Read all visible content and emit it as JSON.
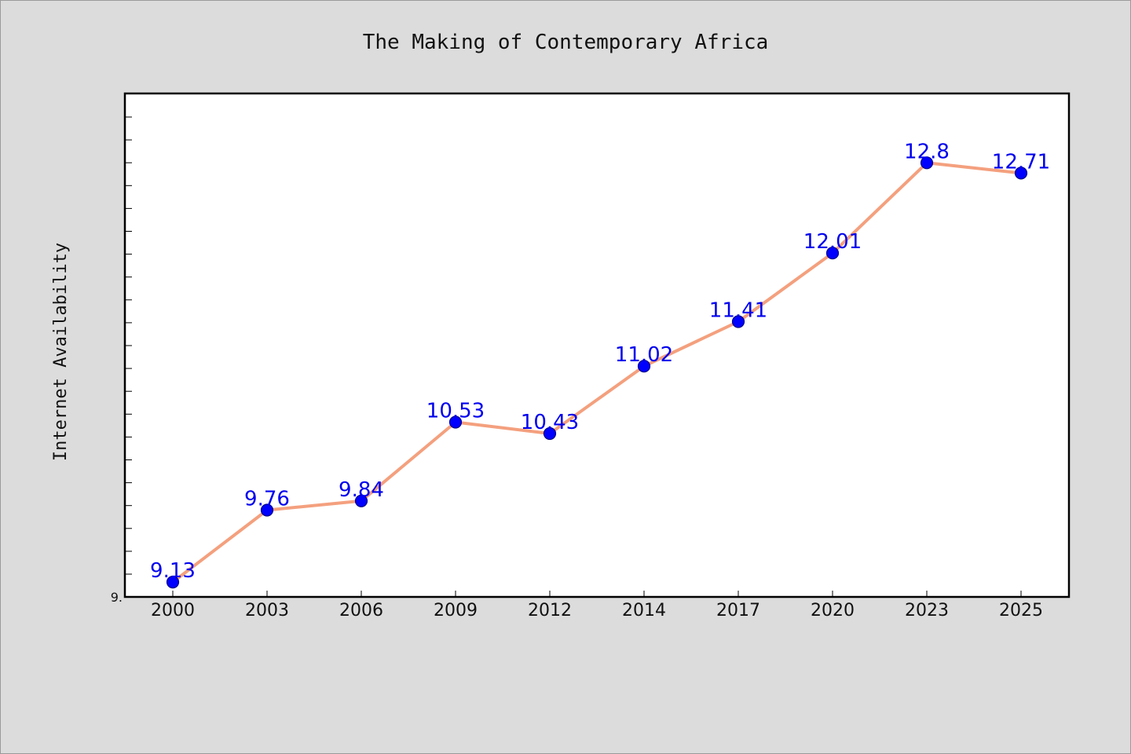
{
  "chart_data": {
    "type": "line",
    "title": "The Making of Contemporary Africa",
    "xlabel": "",
    "ylabel": "Internet Availability",
    "categories": [
      "2000",
      "2003",
      "2006",
      "2009",
      "2012",
      "2014",
      "2017",
      "2020",
      "2023",
      "2025"
    ],
    "series": [
      {
        "values": [
          9.13,
          9.76,
          9.84,
          10.53,
          10.43,
          11.02,
          11.41,
          12.01,
          12.8,
          12.71
        ],
        "data_labels": [
          "9.13",
          "9.76",
          "9.84",
          "10.53",
          "10.43",
          "11.02",
          "11.41",
          "12.01",
          "12.8",
          "12.71"
        ]
      }
    ],
    "y_tick_labels": [
      "9."
    ],
    "ylim": [
      9.0,
      13.4
    ],
    "grid": false,
    "line_color": "#f4a07e",
    "marker_color": "#0000ff",
    "marker_edge_color": "#00008b",
    "label_color": "#0000ee",
    "background_color": "#dcdcdc",
    "plot_background": "#ffffff"
  }
}
